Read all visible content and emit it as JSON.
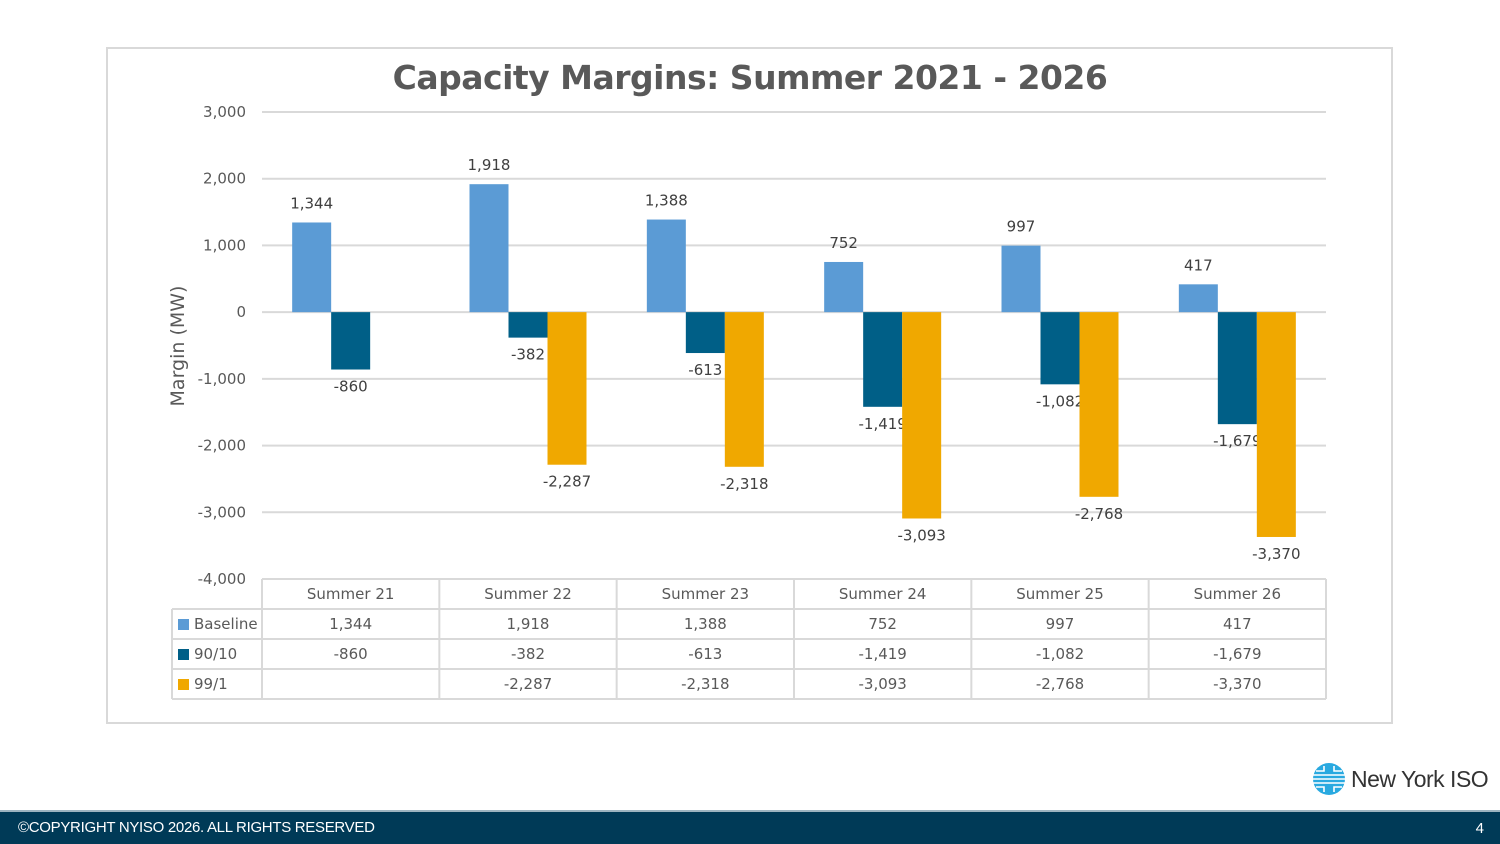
{
  "slide": {
    "page_number": "4",
    "copyright": "©COPYRIGHT NYISO 2026. ALL RIGHTS RESERVED",
    "logo_text": "New York ISO",
    "footer_color": "#003a57"
  },
  "chart_data": {
    "type": "bar",
    "title": "Capacity Margins: Summer 2021 - 2026",
    "xlabel": "",
    "ylabel": "Margin (MW)",
    "ylim": [
      -4000,
      3000
    ],
    "yticks": [
      3000,
      2000,
      1000,
      0,
      -1000,
      -2000,
      -3000,
      -4000
    ],
    "ytick_labels": [
      "3,000",
      "2,000",
      "1,000",
      "0",
      "-1,000",
      "-2,000",
      "-3,000",
      "-4,000"
    ],
    "grid": true,
    "legend": "data-table",
    "categories": [
      "Summer 21",
      "Summer 22",
      "Summer 23",
      "Summer 24",
      "Summer 25",
      "Summer 26"
    ],
    "series": [
      {
        "name": "Baseline",
        "color": "#5b9bd5",
        "values": [
          1344,
          1918,
          1388,
          752,
          997,
          417
        ],
        "labels": [
          "1,344",
          "1,918",
          "1,388",
          "752",
          "997",
          "417"
        ]
      },
      {
        "name": "90/10",
        "color": "#005f87",
        "values": [
          -860,
          -382,
          -613,
          -1419,
          -1082,
          -1679
        ],
        "labels": [
          "-860",
          "-382",
          "-613",
          "-1,419",
          "-1,082",
          "-1,679"
        ]
      },
      {
        "name": "99/1",
        "color": "#f0a800",
        "values": [
          null,
          -2287,
          -2318,
          -3093,
          -2768,
          -3370
        ],
        "labels": [
          "",
          "-2,287",
          "-2,318",
          "-3,093",
          "-2,768",
          "-3,370"
        ]
      }
    ]
  }
}
